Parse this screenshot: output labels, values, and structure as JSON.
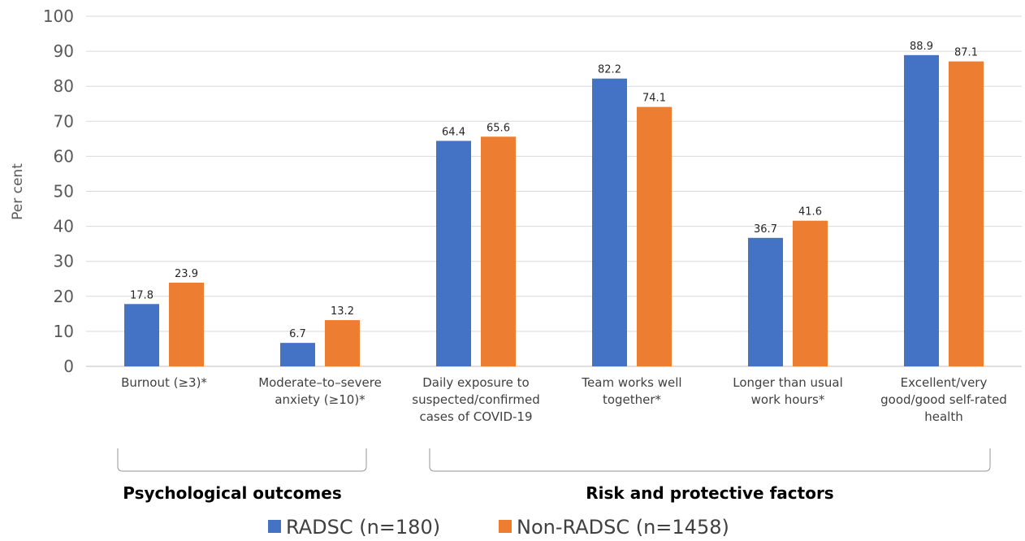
{
  "chart_data": {
    "type": "bar",
    "ylabel": "Per cent",
    "ylim": [
      0,
      100
    ],
    "yticks": [
      0,
      10,
      20,
      30,
      40,
      50,
      60,
      70,
      80,
      90,
      100
    ],
    "grid": true,
    "legend_position": "bottom",
    "categories": [
      [
        "Burnout (≥3)*"
      ],
      [
        "Moderate–to–severe",
        "anxiety (≥10)*"
      ],
      [
        "Daily exposure to",
        "suspected/confirmed",
        "cases of COVID-19"
      ],
      [
        "Team works well",
        "together*"
      ],
      [
        "Longer than usual",
        "work hours*"
      ],
      [
        "Excellent/very",
        "good/good self-rated",
        "health"
      ]
    ],
    "series": [
      {
        "name": "RADSC (n=180)",
        "color": "#4472c4",
        "values": [
          17.8,
          6.7,
          64.4,
          82.2,
          36.7,
          88.9
        ]
      },
      {
        "name": "Non-RADSC (n=1458)",
        "color": "#ed7d31",
        "values": [
          23.9,
          13.2,
          65.6,
          74.1,
          41.6,
          87.1
        ]
      }
    ],
    "groups": [
      {
        "label": "Psychological outcomes",
        "from": 0,
        "to": 1
      },
      {
        "label": "Risk and protective factors",
        "from": 2,
        "to": 5
      }
    ]
  }
}
